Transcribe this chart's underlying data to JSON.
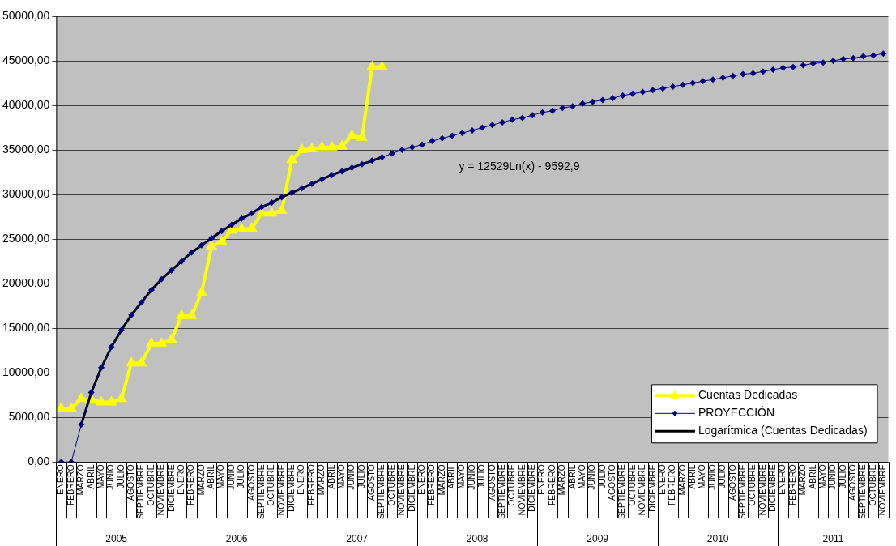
{
  "chart_data": {
    "type": "line",
    "categories": [
      "ENERO",
      "FEBRERO",
      "MARZO",
      "ABRIL",
      "MAYO",
      "JUNIO",
      "JULIO",
      "AGOSTO",
      "SEPTIEMBRE",
      "OCTUBRE",
      "NOVIEMBRE",
      "DICIEMBRE",
      "ENERO",
      "FEBRERO",
      "MARZO",
      "ABRIL",
      "MAYO",
      "JUNIO",
      "JULIO",
      "AGOSTO",
      "SEPTIEMBRE",
      "OCTUBRE",
      "NOVIEMBRE",
      "DICIEMBRE",
      "ENERO",
      "FEBRERO",
      "MARZO",
      "ABRIL",
      "MAYO",
      "JUNIO",
      "JULIO",
      "AGOSTO",
      "SEPTIEMBRE",
      "OCTUBRE",
      "NOVIEMBRE",
      "DICIEMBRE",
      "ENERO",
      "FEBRERO",
      "MARZO",
      "ABRIL",
      "MAYO",
      "JUNIO",
      "JULIO",
      "AGOSTO",
      "SEPTIEMBRE",
      "OCTUBRE",
      "NOVIEMBRE",
      "DICIEMBRE",
      "ENERO",
      "FEBRERO",
      "MARZO",
      "ABRIL",
      "MAYO",
      "JUNIO",
      "JULIO",
      "AGOSTO",
      "SEPTIEMBRE",
      "OCTUBRE",
      "NOVIEMBRE",
      "DICIEMBRE",
      "ENERO",
      "FEBRERO",
      "MARZO",
      "ABRIL",
      "MAYO",
      "JUNIO",
      "JULIO",
      "AGOSTO",
      "SEPTIEMBRE",
      "OCTUBRE",
      "NOVIEMBRE",
      "DICIEMBRE",
      "ENERO",
      "FEBRERO",
      "MARZO",
      "ABRIL",
      "MAYO",
      "JUNIO",
      "JULIO",
      "AGOSTO",
      "SEPTIEMBRE",
      "OCTUBRE",
      "NOVIEMBRE"
    ],
    "series": [
      {
        "name": "Cuentas Dedicadas",
        "color": "#ffff00",
        "marker": "triangle",
        "values": [
          6000,
          6000,
          7100,
          7000,
          6700,
          6700,
          7100,
          11100,
          11100,
          13300,
          13300,
          13700,
          16400,
          16400,
          19000,
          24200,
          24700,
          26000,
          26100,
          26200,
          27900,
          27900,
          28200,
          33900,
          35000,
          35100,
          35300,
          35300,
          35400,
          36600,
          36400,
          44300,
          44300,
          null,
          null,
          null,
          null,
          null,
          null,
          null,
          null,
          null,
          null,
          null,
          null,
          null,
          null,
          null,
          null,
          null,
          null,
          null,
          null,
          null,
          null,
          null,
          null,
          null,
          null,
          null,
          null,
          null,
          null,
          null,
          null,
          null,
          null,
          null,
          null,
          null,
          null,
          null,
          null,
          null,
          null,
          null,
          null,
          null,
          null,
          null,
          null,
          null,
          null
        ]
      },
      {
        "name": "PROYECCIÓN",
        "color": "#000080",
        "marker": "diamond",
        "values": [
          0,
          0,
          4200,
          7800,
          10600,
          12900,
          14800,
          16500,
          17900,
          19300,
          20500,
          21500,
          22500,
          23500,
          24300,
          25100,
          25900,
          26600,
          27300,
          27900,
          28600,
          29100,
          29700,
          30200,
          30700,
          31200,
          31700,
          32200,
          32600,
          33000,
          33400,
          33800,
          34200,
          34600,
          35000,
          35300,
          35600,
          36000,
          36300,
          36600,
          36900,
          37200,
          37500,
          37800,
          38100,
          38400,
          38600,
          38900,
          39200,
          39400,
          39700,
          39900,
          40200,
          40400,
          40600,
          40800,
          41100,
          41300,
          41500,
          41700,
          41900,
          42100,
          42300,
          42500,
          42700,
          42900,
          43100,
          43300,
          43500,
          43600,
          43800,
          44000,
          44200,
          44300,
          44500,
          44700,
          44800,
          45000,
          45200,
          45300,
          45500,
          45600,
          45800
        ]
      },
      {
        "name": "Logarítmica (Cuentas Dedicadas)",
        "color": "#000000",
        "marker": "none",
        "values": [
          null,
          null,
          4200,
          7800,
          10600,
          12900,
          14800,
          16500,
          17900,
          19300,
          20500,
          21500,
          22500,
          23500,
          24300,
          25100,
          25900,
          26600,
          27300,
          27900,
          28600,
          29100,
          29700,
          30200,
          30700,
          31200,
          31700,
          32200,
          32600,
          33000,
          33400,
          33800,
          34200,
          null,
          null,
          null,
          null,
          null,
          null,
          null,
          null,
          null,
          null,
          null,
          null,
          null,
          null,
          null,
          null,
          null,
          null,
          null,
          null,
          null,
          null,
          null,
          null,
          null,
          null,
          null,
          null,
          null,
          null,
          null,
          null,
          null,
          null,
          null,
          null,
          null,
          null,
          null,
          null,
          null,
          null,
          null,
          null,
          null,
          null,
          null,
          null,
          null,
          null
        ]
      }
    ],
    "ylim": [
      0,
      50000
    ],
    "yticks": [
      {
        "value": 0,
        "label": "0,00"
      },
      {
        "value": 5000,
        "label": "5000,00"
      },
      {
        "value": 10000,
        "label": "10000,00"
      },
      {
        "value": 15000,
        "label": "15000,00"
      },
      {
        "value": 20000,
        "label": "20000,00"
      },
      {
        "value": 25000,
        "label": "25000,00"
      },
      {
        "value": 30000,
        "label": "30000,00"
      },
      {
        "value": 35000,
        "label": "35000,00"
      },
      {
        "value": 40000,
        "label": "40000,00"
      },
      {
        "value": 45000,
        "label": "45000,00"
      },
      {
        "value": 50000,
        "label": "50000,00"
      }
    ],
    "grid": "y",
    "legend": "bottom right",
    "line_style": "solid",
    "annotations": [
      "y = 12529Ln(x) - 9592,9",
      "2005",
      "2006",
      "2007",
      "2008",
      "2009",
      "2010",
      "2011"
    ]
  }
}
